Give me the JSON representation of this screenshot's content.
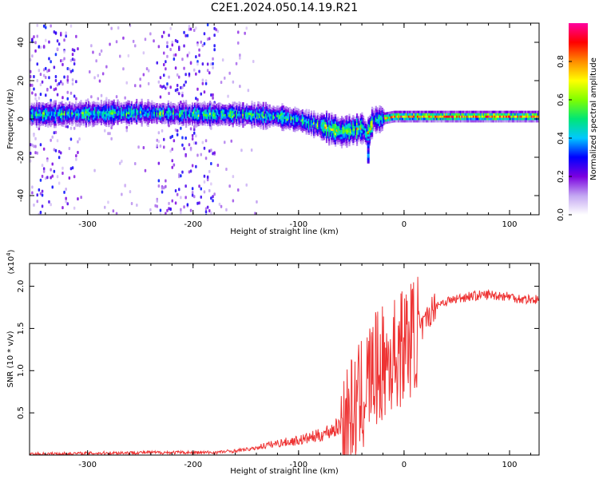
{
  "figure": {
    "title": "C2E1.2024.050.14.19.R21"
  },
  "chart_data": [
    {
      "type": "heatmap",
      "xlabel": "Height of straight line (km)",
      "ylabel": "Frequency (Hz)",
      "xlim": [
        -355,
        128
      ],
      "ylim": [
        -50,
        50
      ],
      "x_ticks": [
        -300,
        -200,
        -100,
        0,
        100
      ],
      "y_ticks": [
        -40,
        -20,
        0,
        20,
        40
      ],
      "colorbar": {
        "label": "Normalized spectral amplitude",
        "range": [
          0,
          1
        ],
        "ticks": [
          "0.0",
          "0.2",
          "0.4",
          "0.6",
          "0.8"
        ],
        "tick_values": [
          0.0,
          0.2,
          0.4,
          0.6,
          0.8
        ],
        "colors": [
          "#ffffff",
          "#c3a6f2",
          "#7b00e0",
          "#0000ff",
          "#00c8ff",
          "#00e676",
          "#7fff00",
          "#ffff00",
          "#ff8c00",
          "#ff0000",
          "#ff00a0"
        ]
      },
      "trend_line": {
        "x": [
          -355,
          -300,
          -250,
          -200,
          -150,
          -120,
          -100,
          -80,
          -60,
          -50,
          -40,
          -35,
          -30,
          -20,
          -10,
          0,
          20,
          50,
          100,
          128
        ],
        "y": [
          3,
          3.5,
          4,
          3,
          3,
          2,
          0,
          -3,
          -6,
          -5,
          -4,
          -8,
          0,
          1,
          2,
          2,
          2,
          2,
          2,
          2
        ]
      },
      "noise_bands": [
        {
          "x_range": [
            -355,
            -310
          ],
          "level": "high"
        },
        {
          "x_range": [
            -300,
            -240
          ],
          "level": "low"
        },
        {
          "x_range": [
            -235,
            -180
          ],
          "level": "high"
        },
        {
          "x_range": [
            -180,
            -150
          ],
          "level": "low"
        }
      ]
    },
    {
      "type": "line",
      "xlabel": "Height of straight line (km)",
      "ylabel": "SNR (10 * v/v)",
      "y_multiplier": "(x10",
      "y_multiplier_exp": "4",
      "y_multiplier_close": ")",
      "xlim": [
        -355,
        128
      ],
      "ylim": [
        0,
        2.27
      ],
      "x_ticks": [
        -300,
        -200,
        -100,
        0,
        100
      ],
      "y_ticks": [
        "0.5",
        "1.0",
        "1.5",
        "2.0"
      ],
      "y_tick_values": [
        0.5,
        1.0,
        1.5,
        2.0
      ],
      "series": [
        {
          "color": "#ee3333",
          "x": [
            -355,
            -300,
            -250,
            -200,
            -180,
            -160,
            -140,
            -120,
            -100,
            -80,
            -60,
            -50,
            -40,
            -35,
            -30,
            -25,
            -20,
            -10,
            0,
            10,
            20,
            25,
            30,
            40,
            50,
            60,
            80,
            100,
            110,
            128
          ],
          "y": [
            0.01,
            0.02,
            0.03,
            0.03,
            0.03,
            0.05,
            0.08,
            0.12,
            0.15,
            0.2,
            0.3,
            0.4,
            0.6,
            0.8,
            0.9,
            0.95,
            1.0,
            1.1,
            1.25,
            1.35,
            1.55,
            1.7,
            1.78,
            1.82,
            1.85,
            1.88,
            1.9,
            1.88,
            1.85,
            1.84
          ]
        }
      ]
    }
  ]
}
